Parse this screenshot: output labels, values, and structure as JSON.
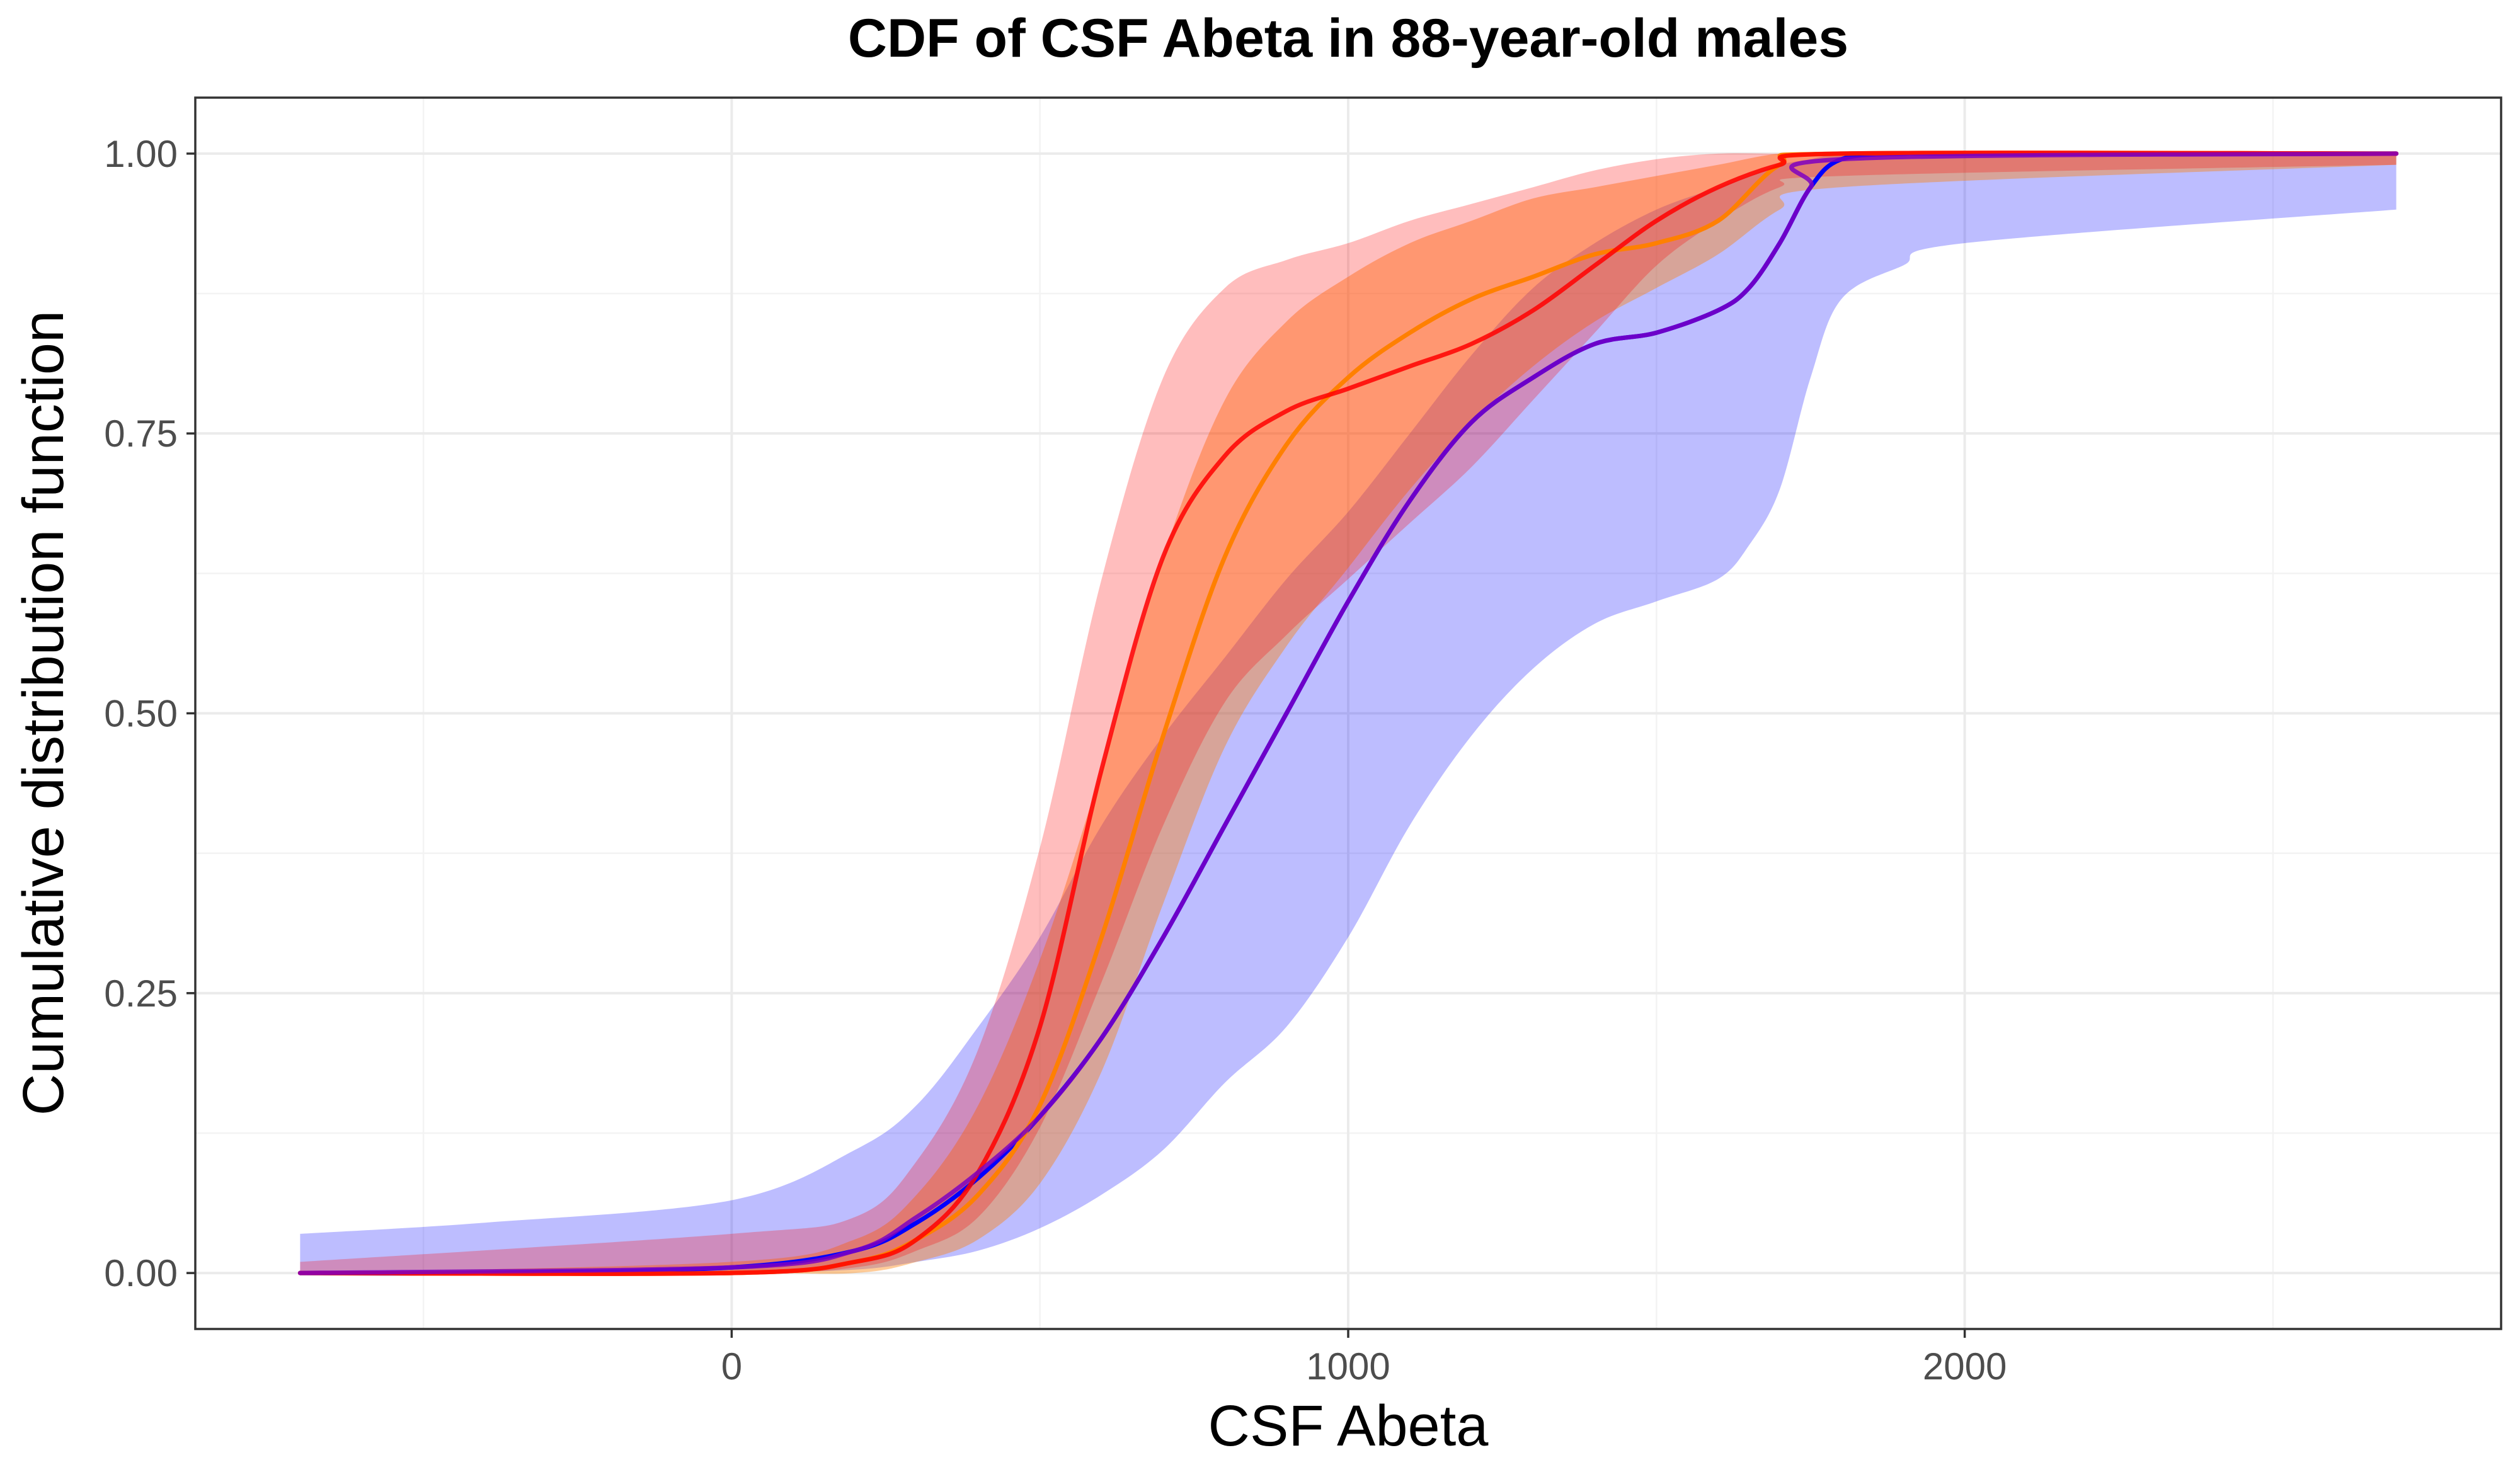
{
  "chart_data": {
    "type": "line",
    "title": "CDF of CSF Abeta in 88-year-old males",
    "xlabel": "CSF Abeta",
    "ylabel": "Cumulative distribution function",
    "xlim": [
      -870,
      2870
    ],
    "ylim": [
      -0.05,
      1.05
    ],
    "x_ticks": [
      0,
      1000,
      2000
    ],
    "x_tick_labels": [
      "0",
      "1000",
      "2000"
    ],
    "y_ticks": [
      0,
      0.25,
      0.5,
      0.75,
      1.0
    ],
    "y_tick_labels": [
      "0.00",
      "0.25",
      "0.50",
      "0.75",
      "1.00"
    ],
    "grid": true,
    "legend": "none",
    "series": [
      {
        "name": "blue",
        "color": "#0000ff",
        "line_alpha": 1,
        "band_alpha": 0.26,
        "x": [
          -700,
          -400,
          0,
          200,
          300,
          400,
          500,
          600,
          700,
          800,
          900,
          1000,
          1100,
          1200,
          1300,
          1400,
          1500,
          1600,
          1650,
          1700,
          1750,
          1800,
          1900,
          2000,
          2700
        ],
        "y": [
          0.0,
          0.0,
          0.005,
          0.02,
          0.045,
          0.085,
          0.14,
          0.21,
          0.3,
          0.4,
          0.5,
          0.6,
          0.69,
          0.76,
          0.8,
          0.83,
          0.84,
          0.86,
          0.88,
          0.92,
          0.97,
          0.995,
          1.0,
          1.0,
          1.0
        ],
        "lower": [
          0.0,
          0.0,
          0.0,
          0.003,
          0.01,
          0.02,
          0.04,
          0.07,
          0.11,
          0.17,
          0.22,
          0.3,
          0.4,
          0.48,
          0.54,
          0.58,
          0.6,
          0.62,
          0.65,
          0.7,
          0.8,
          0.87,
          0.9,
          0.92,
          0.95
        ],
        "upper": [
          0.035,
          0.045,
          0.065,
          0.11,
          0.15,
          0.22,
          0.3,
          0.4,
          0.48,
          0.55,
          0.62,
          0.68,
          0.75,
          0.82,
          0.88,
          0.92,
          0.95,
          0.97,
          0.98,
          0.99,
          0.995,
          1.0,
          1.0,
          1.0,
          1.0
        ]
      },
      {
        "name": "orange",
        "color": "#ff8000",
        "line_alpha": 1,
        "band_alpha": 0.4,
        "x": [
          -700,
          0,
          200,
          300,
          400,
          500,
          600,
          700,
          800,
          900,
          1000,
          1100,
          1200,
          1300,
          1400,
          1500,
          1600,
          1700,
          1800,
          2700
        ],
        "y": [
          0.0,
          0.0,
          0.01,
          0.03,
          0.07,
          0.15,
          0.3,
          0.48,
          0.64,
          0.74,
          0.8,
          0.84,
          0.87,
          0.89,
          0.91,
          0.92,
          0.94,
          0.99,
          1.0,
          1.0
        ],
        "lower": [
          0.0,
          0.0,
          0.0,
          0.01,
          0.03,
          0.08,
          0.18,
          0.33,
          0.47,
          0.56,
          0.63,
          0.7,
          0.76,
          0.81,
          0.85,
          0.88,
          0.91,
          0.95,
          0.97,
          0.99
        ],
        "upper": [
          0.0,
          0.01,
          0.03,
          0.07,
          0.15,
          0.28,
          0.45,
          0.64,
          0.78,
          0.85,
          0.89,
          0.92,
          0.94,
          0.96,
          0.97,
          0.98,
          0.99,
          1.0,
          1.0,
          1.0
        ]
      },
      {
        "name": "red",
        "color": "#ff0000",
        "line_alpha": 0.85,
        "band_alpha": 0.26,
        "x": [
          -700,
          0,
          200,
          300,
          400,
          500,
          600,
          700,
          800,
          900,
          1000,
          1100,
          1200,
          1300,
          1400,
          1500,
          1600,
          1700,
          1800,
          2700
        ],
        "y": [
          0.0,
          0.0,
          0.01,
          0.03,
          0.09,
          0.22,
          0.45,
          0.64,
          0.73,
          0.77,
          0.79,
          0.81,
          0.83,
          0.86,
          0.9,
          0.94,
          0.97,
          0.99,
          1.0,
          1.0
        ],
        "lower": [
          0.0,
          0.0,
          0.005,
          0.02,
          0.05,
          0.13,
          0.26,
          0.4,
          0.51,
          0.57,
          0.62,
          0.67,
          0.72,
          0.78,
          0.84,
          0.9,
          0.94,
          0.97,
          0.98,
          0.99
        ],
        "upper": [
          0.01,
          0.035,
          0.05,
          0.1,
          0.2,
          0.38,
          0.62,
          0.8,
          0.88,
          0.905,
          0.92,
          0.94,
          0.955,
          0.97,
          0.985,
          0.995,
          1.0,
          1.0,
          1.0,
          1.0
        ]
      },
      {
        "name": "purple",
        "color": "#7f00bf",
        "line_alpha": 0.85,
        "band_alpha": 0,
        "x": [
          -700,
          0,
          200,
          300,
          400,
          500,
          600,
          700,
          800,
          900,
          1000,
          1100,
          1200,
          1300,
          1400,
          1500,
          1600,
          1650,
          1700,
          1750,
          1800,
          2700
        ],
        "y": [
          0.0,
          0.005,
          0.02,
          0.05,
          0.09,
          0.14,
          0.21,
          0.3,
          0.4,
          0.5,
          0.6,
          0.69,
          0.76,
          0.8,
          0.83,
          0.84,
          0.86,
          0.88,
          0.92,
          0.97,
          0.995,
          1.0
        ]
      }
    ]
  }
}
